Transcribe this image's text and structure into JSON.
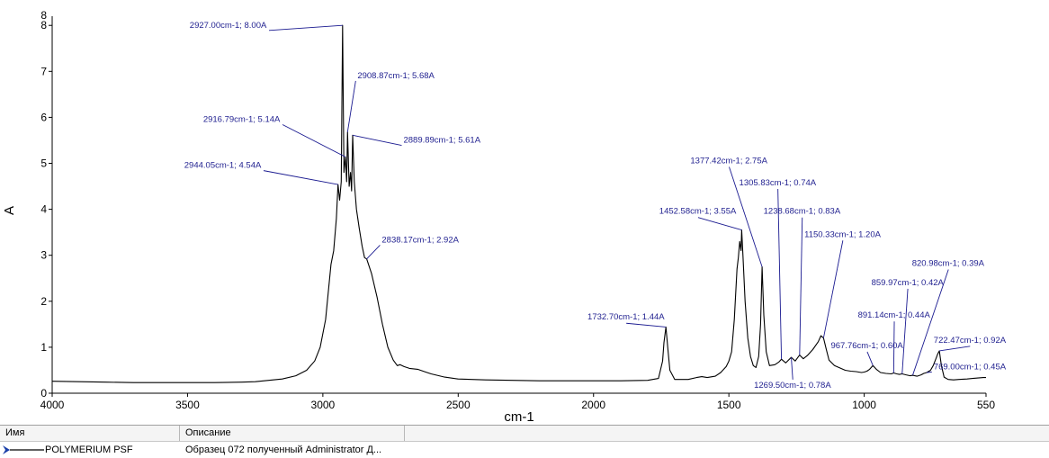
{
  "chart_data": {
    "type": "line",
    "xlabel": "cm-1",
    "ylabel": "A",
    "xlim": [
      4000,
      550
    ],
    "ylim": [
      0,
      8.2
    ],
    "x_reversed": true,
    "xticks": [
      "4000",
      "3500",
      "3000",
      "2500",
      "2000",
      "1500",
      "1000",
      "550"
    ],
    "yticks": [
      "0",
      "1",
      "2",
      "3",
      "4",
      "5",
      "6",
      "7",
      "8"
    ],
    "top_y_label": "8",
    "grid": false,
    "line_color": "#000000",
    "annotation_color": "#1a1a90",
    "series": [
      {
        "points": [
          [
            4000,
            0.26
          ],
          [
            3900,
            0.25
          ],
          [
            3800,
            0.24
          ],
          [
            3700,
            0.23
          ],
          [
            3600,
            0.23
          ],
          [
            3500,
            0.23
          ],
          [
            3400,
            0.23
          ],
          [
            3300,
            0.24
          ],
          [
            3250,
            0.25
          ],
          [
            3200,
            0.28
          ],
          [
            3150,
            0.31
          ],
          [
            3100,
            0.38
          ],
          [
            3060,
            0.5
          ],
          [
            3030,
            0.7
          ],
          [
            3010,
            1.0
          ],
          [
            2990,
            1.6
          ],
          [
            2980,
            2.2
          ],
          [
            2970,
            2.8
          ],
          [
            2960,
            3.1
          ],
          [
            2950,
            3.8
          ],
          [
            2944.05,
            4.54
          ],
          [
            2938,
            4.2
          ],
          [
            2932,
            4.6
          ],
          [
            2927,
            8.0
          ],
          [
            2922,
            4.8
          ],
          [
            2916.79,
            5.14
          ],
          [
            2912,
            4.6
          ],
          [
            2908.87,
            5.68
          ],
          [
            2903,
            4.5
          ],
          [
            2898,
            4.8
          ],
          [
            2894,
            4.4
          ],
          [
            2889.89,
            5.61
          ],
          [
            2884,
            4.6
          ],
          [
            2876,
            4.0
          ],
          [
            2866,
            3.6
          ],
          [
            2855,
            3.2
          ],
          [
            2846,
            2.95
          ],
          [
            2838.17,
            2.92
          ],
          [
            2820,
            2.6
          ],
          [
            2800,
            2.1
          ],
          [
            2780,
            1.5
          ],
          [
            2760,
            1.0
          ],
          [
            2740,
            0.72
          ],
          [
            2725,
            0.6
          ],
          [
            2715,
            0.62
          ],
          [
            2700,
            0.58
          ],
          [
            2680,
            0.54
          ],
          [
            2650,
            0.52
          ],
          [
            2620,
            0.46
          ],
          [
            2600,
            0.42
          ],
          [
            2550,
            0.35
          ],
          [
            2500,
            0.31
          ],
          [
            2450,
            0.3
          ],
          [
            2400,
            0.29
          ],
          [
            2300,
            0.28
          ],
          [
            2200,
            0.27
          ],
          [
            2100,
            0.27
          ],
          [
            2000,
            0.27
          ],
          [
            1900,
            0.27
          ],
          [
            1800,
            0.28
          ],
          [
            1760,
            0.32
          ],
          [
            1745,
            0.7
          ],
          [
            1740,
            1.1
          ],
          [
            1732.7,
            1.44
          ],
          [
            1726,
            1.0
          ],
          [
            1718,
            0.5
          ],
          [
            1700,
            0.3
          ],
          [
            1650,
            0.3
          ],
          [
            1620,
            0.34
          ],
          [
            1600,
            0.36
          ],
          [
            1580,
            0.34
          ],
          [
            1550,
            0.37
          ],
          [
            1530,
            0.45
          ],
          [
            1510,
            0.58
          ],
          [
            1500,
            0.7
          ],
          [
            1490,
            0.9
          ],
          [
            1480,
            1.6
          ],
          [
            1470,
            2.7
          ],
          [
            1465,
            2.95
          ],
          [
            1460,
            3.3
          ],
          [
            1455,
            3.1
          ],
          [
            1452.58,
            3.55
          ],
          [
            1448,
            3.0
          ],
          [
            1440,
            2.0
          ],
          [
            1430,
            1.2
          ],
          [
            1420,
            0.8
          ],
          [
            1410,
            0.6
          ],
          [
            1400,
            0.56
          ],
          [
            1390,
            0.8
          ],
          [
            1383,
            1.5
          ],
          [
            1377.42,
            2.75
          ],
          [
            1371,
            1.7
          ],
          [
            1362,
            0.9
          ],
          [
            1350,
            0.6
          ],
          [
            1330,
            0.62
          ],
          [
            1315,
            0.68
          ],
          [
            1305.83,
            0.74
          ],
          [
            1290,
            0.66
          ],
          [
            1280,
            0.72
          ],
          [
            1269.5,
            0.78
          ],
          [
            1255,
            0.7
          ],
          [
            1238.68,
            0.83
          ],
          [
            1225,
            0.75
          ],
          [
            1210,
            0.82
          ],
          [
            1190,
            0.95
          ],
          [
            1170,
            1.12
          ],
          [
            1160,
            1.25
          ],
          [
            1150.33,
            1.2
          ],
          [
            1140,
            0.95
          ],
          [
            1130,
            0.72
          ],
          [
            1110,
            0.6
          ],
          [
            1090,
            0.55
          ],
          [
            1070,
            0.5
          ],
          [
            1050,
            0.48
          ],
          [
            1030,
            0.47
          ],
          [
            1010,
            0.45
          ],
          [
            1000,
            0.46
          ],
          [
            990,
            0.48
          ],
          [
            980,
            0.52
          ],
          [
            967.76,
            0.6
          ],
          [
            955,
            0.52
          ],
          [
            940,
            0.45
          ],
          [
            920,
            0.43
          ],
          [
            900,
            0.42
          ],
          [
            891.14,
            0.44
          ],
          [
            880,
            0.42
          ],
          [
            870,
            0.41
          ],
          [
            859.97,
            0.42
          ],
          [
            845,
            0.4
          ],
          [
            830,
            0.38
          ],
          [
            820.98,
            0.39
          ],
          [
            805,
            0.37
          ],
          [
            790,
            0.4
          ],
          [
            780,
            0.43
          ],
          [
            769,
            0.45
          ],
          [
            755,
            0.5
          ],
          [
            745,
            0.6
          ],
          [
            735,
            0.75
          ],
          [
            728,
            0.86
          ],
          [
            722.47,
            0.92
          ],
          [
            715,
            0.6
          ],
          [
            705,
            0.35
          ],
          [
            690,
            0.3
          ],
          [
            670,
            0.29
          ],
          [
            650,
            0.3
          ],
          [
            620,
            0.31
          ],
          [
            600,
            0.32
          ],
          [
            580,
            0.33
          ],
          [
            560,
            0.34
          ],
          [
            550,
            0.34
          ]
        ]
      }
    ],
    "annotations": [
      {
        "text": "2927.00cm-1; 8.00A",
        "x": 2927.0,
        "y": 8.0,
        "lx": 3350,
        "ly": 7.95
      },
      {
        "text": "2908.87cm-1; 5.68A",
        "x": 2908.87,
        "y": 5.68,
        "lx": 2730,
        "ly": 6.85
      },
      {
        "text": "2916.79cm-1; 5.14A",
        "x": 2916.79,
        "y": 5.14,
        "lx": 3300,
        "ly": 5.9
      },
      {
        "text": "2889.89cm-1; 5.61A",
        "x": 2889.89,
        "y": 5.61,
        "lx": 2560,
        "ly": 5.45
      },
      {
        "text": "2944.05cm-1; 4.54A",
        "x": 2944.05,
        "y": 4.54,
        "lx": 3370,
        "ly": 4.9
      },
      {
        "text": "2838.17cm-1; 2.92A",
        "x": 2838.17,
        "y": 2.92,
        "lx": 2640,
        "ly": 3.28
      },
      {
        "text": "1377.42cm-1; 2.75A",
        "x": 1377.42,
        "y": 2.75,
        "lx": 1500,
        "ly": 5.0
      },
      {
        "text": "1305.83cm-1; 0.74A",
        "x": 1305.83,
        "y": 0.74,
        "lx": 1320,
        "ly": 4.52
      },
      {
        "text": "1452.58cm-1; 3.55A",
        "x": 1452.58,
        "y": 3.55,
        "lx": 1615,
        "ly": 3.9
      },
      {
        "text": "1238.68cm-1; 0.83A",
        "x": 1238.68,
        "y": 0.83,
        "lx": 1230,
        "ly": 3.9
      },
      {
        "text": "1150.33cm-1; 1.20A",
        "x": 1150.33,
        "y": 1.2,
        "lx": 1080,
        "ly": 3.4
      },
      {
        "text": "820.98cm-1; 0.39A",
        "x": 820.98,
        "y": 0.39,
        "lx": 690,
        "ly": 2.77
      },
      {
        "text": "859.97cm-1; 0.42A",
        "x": 859.97,
        "y": 0.42,
        "lx": 840,
        "ly": 2.35
      },
      {
        "text": "1732.70cm-1; 1.44A",
        "x": 1732.7,
        "y": 1.44,
        "lx": 1880,
        "ly": 1.6
      },
      {
        "text": "891.14cm-1; 0.44A",
        "x": 891.14,
        "y": 0.44,
        "lx": 890,
        "ly": 1.64
      },
      {
        "text": "967.76cm-1; 0.60A",
        "x": 967.76,
        "y": 0.6,
        "lx": 990,
        "ly": 0.98
      },
      {
        "text": "722.47cm-1; 0.92A",
        "x": 722.47,
        "y": 0.92,
        "lx": 610,
        "ly": 1.1
      },
      {
        "text": "769.00cm-1; 0.45A",
        "x": 769.0,
        "y": 0.45,
        "lx": 610,
        "ly": 0.52
      },
      {
        "text": "1269.50cm-1; 0.78A",
        "x": 1269.5,
        "y": 0.78,
        "lx": 1265,
        "ly": 0.12
      }
    ]
  },
  "legend": {
    "col_name": "Имя",
    "col_desc": "Описание",
    "rows": [
      {
        "name": "POLYMERIUM PSF",
        "desc": "Образец 072 полученный Administrator Д..."
      }
    ]
  }
}
